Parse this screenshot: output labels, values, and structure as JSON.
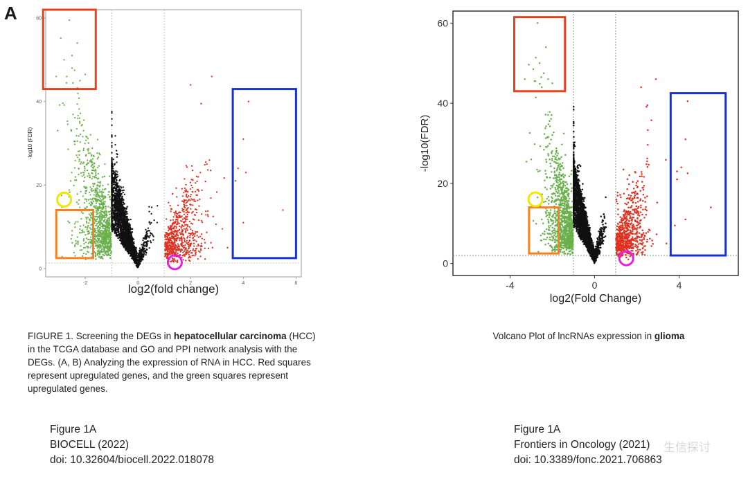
{
  "panel_letter": "A",
  "chart_data": [
    {
      "type": "scatter",
      "title": "",
      "xlabel": "log2(fold change)",
      "ylabel": "-log10 (FDR)",
      "xlim": [
        -3.5,
        6.2
      ],
      "ylim": [
        -2,
        62
      ],
      "xticks": [
        -2,
        0,
        2,
        4,
        6
      ],
      "yticks": [
        0,
        20,
        40,
        60
      ],
      "fold_change_threshold": [
        -1,
        1
      ],
      "fdr_threshold": 1.3,
      "grid": false,
      "series": [
        {
          "color": "#6ab04c",
          "values_description_note": "",
          "points": [
            [
              -2.6,
              59.5
            ],
            [
              -2.3,
              54
            ],
            [
              -2.5,
              51
            ],
            [
              -2.8,
              50
            ],
            [
              -2.5,
              48
            ],
            [
              -2.4,
              47.5
            ],
            [
              -2.0,
              46.5
            ],
            [
              -2.7,
              46
            ],
            [
              -2.2,
              45
            ],
            [
              -3.1,
              46
            ],
            [
              -2.9,
              17.5
            ],
            [
              -2.6,
              11
            ],
            [
              -2.5,
              8
            ],
            [
              -2.1,
              3
            ],
            [
              -2.0,
              5
            ]
          ]
        },
        {
          "color": "#111111",
          "points": []
        },
        {
          "color": "#e03020",
          "points": [
            [
              2.8,
              46
            ],
            [
              2.0,
              44
            ],
            [
              2.4,
              39.5
            ],
            [
              4.2,
              40
            ],
            [
              4.0,
              31
            ],
            [
              3.8,
              24
            ],
            [
              3.6,
              23
            ],
            [
              4.1,
              23
            ],
            [
              3.7,
              21
            ],
            [
              5.5,
              14
            ],
            [
              4.0,
              11
            ],
            [
              3.2,
              9.5
            ],
            [
              3.4,
              5
            ],
            [
              1.4,
              2
            ],
            [
              1.5,
              1.5
            ]
          ]
        }
      ],
      "annotations": [
        {
          "shape": "rect",
          "color": "#e8401c",
          "x": [
            -3.6,
            -1.6
          ],
          "y": [
            43,
            62
          ]
        },
        {
          "shape": "rect",
          "color": "#1431d6",
          "x": [
            3.6,
            6.0
          ],
          "y": [
            2.5,
            43
          ]
        },
        {
          "shape": "rect",
          "color": "#f5821f",
          "x": [
            -3.1,
            -1.7
          ],
          "y": [
            2.5,
            14
          ]
        },
        {
          "shape": "circle",
          "color": "#f2e600",
          "x": -2.8,
          "y": 16.5
        },
        {
          "shape": "circle",
          "color": "#e81ee0",
          "x": 1.4,
          "y": 1.5
        }
      ]
    },
    {
      "type": "scatter",
      "title": "",
      "xlabel": "log2(Fold Change)",
      "ylabel": "-log10(FDR)",
      "xlim": [
        -6.7,
        6.8
      ],
      "ylim": [
        -3,
        63
      ],
      "xticks": [
        -4,
        0,
        4
      ],
      "yticks": [
        0,
        20,
        40,
        60
      ],
      "fold_change_threshold": [
        -1,
        1
      ],
      "fdr_threshold": 2,
      "grid": false,
      "series": [
        {
          "color": "#6ab04c",
          "points": [
            [
              -2.7,
              60
            ],
            [
              -2.3,
              54
            ],
            [
              -2.6,
              50
            ],
            [
              -2.9,
              48.5
            ],
            [
              -2.4,
              47.5
            ],
            [
              -2.2,
              46
            ],
            [
              -2.8,
              45.5
            ],
            [
              -2.0,
              45
            ],
            [
              -2.5,
              44
            ],
            [
              -3.3,
              46
            ],
            [
              -2.7,
              16.5
            ],
            [
              -2.5,
              11
            ],
            [
              -2.3,
              6
            ],
            [
              -2.0,
              4
            ]
          ]
        },
        {
          "color": "#111111",
          "points": []
        },
        {
          "color": "#e03020",
          "points": [
            [
              2.9,
              46
            ],
            [
              2.2,
              44
            ],
            [
              2.5,
              39.5
            ],
            [
              4.4,
              40.5
            ],
            [
              4.3,
              31
            ],
            [
              4.1,
              24
            ],
            [
              3.9,
              23
            ],
            [
              4.4,
              22.5
            ],
            [
              3.9,
              21
            ],
            [
              5.5,
              14
            ],
            [
              4.3,
              11
            ],
            [
              3.8,
              9.5
            ],
            [
              3.4,
              5
            ],
            [
              1.5,
              1.5
            ],
            [
              1.6,
              1
            ]
          ]
        }
      ],
      "annotations": [
        {
          "shape": "rect",
          "color": "#e8401c",
          "x": [
            -3.8,
            -1.4
          ],
          "y": [
            43,
            61.5
          ]
        },
        {
          "shape": "rect",
          "color": "#1431d6",
          "x": [
            3.6,
            6.2
          ],
          "y": [
            2,
            42.5
          ]
        },
        {
          "shape": "rect",
          "color": "#f5821f",
          "x": [
            -3.1,
            -1.7
          ],
          "y": [
            2.5,
            14
          ]
        },
        {
          "shape": "circle",
          "color": "#f2e600",
          "x": -2.8,
          "y": 16
        },
        {
          "shape": "circle",
          "color": "#e81ee0",
          "x": 1.5,
          "y": 1.3
        }
      ]
    }
  ],
  "captions": {
    "left": {
      "part1": "FIGURE 1. Screening the DEGs in ",
      "bold": "hepatocellular carcinoma",
      "part2": " (HCC) in the TCGA database and GO and PPI network analysis with the DEGs. (A, B) Analyzing the expression of RNA in HCC. Red squares represent upregulated genes, and the green squares represent upregulated genes."
    },
    "right": {
      "part1": "Volcano Plot of lncRNAs expression in ",
      "bold": "glioma"
    }
  },
  "sources": {
    "left": {
      "figure": "Figure 1A",
      "journal": "BIOCELL (2022)",
      "doi": "doi: 10.32604/biocell.2022.018078"
    },
    "right": {
      "figure": "Figure 1A",
      "journal": "Frontiers in Oncology (2021)",
      "doi": "doi: 10.3389/fonc.2021.706863"
    }
  },
  "watermark": "生信探讨"
}
